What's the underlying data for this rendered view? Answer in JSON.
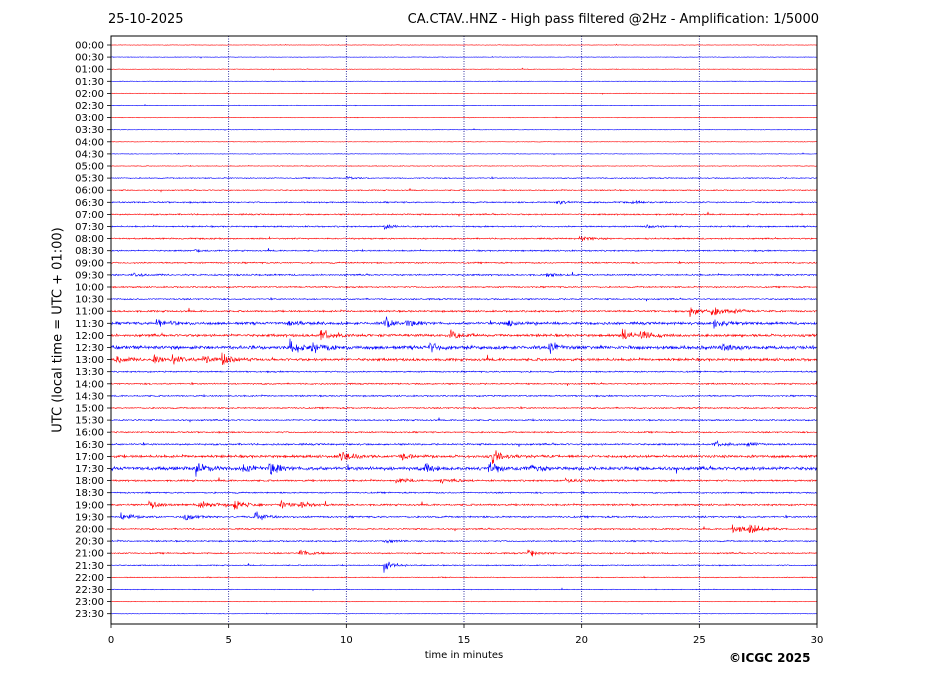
{
  "header": {
    "date": "25-10-2025",
    "title": "CA.CTAV..HNZ - High pass filtered @2Hz - Amplification: 1/5000"
  },
  "footer": {
    "copyright": "©ICGC 2025"
  },
  "chart_data": {
    "type": "line",
    "xlabel": "time in minutes",
    "ylabel": "UTC (local time = UTC + 01:00)",
    "xlim": [
      0,
      30
    ],
    "xticks": [
      0,
      5,
      10,
      15,
      20,
      25,
      30
    ],
    "x_gridlines": [
      5,
      10,
      15,
      20,
      25
    ],
    "grid": "vertical-dotted",
    "colors": {
      "trace_a": "#ff0000",
      "trace_b": "#0000ff",
      "grid": "#00008b"
    },
    "rows": [
      "00:00",
      "00:30",
      "01:00",
      "01:30",
      "02:00",
      "02:30",
      "03:00",
      "03:30",
      "04:00",
      "04:30",
      "05:00",
      "05:30",
      "06:00",
      "06:30",
      "07:00",
      "07:30",
      "08:00",
      "08:30",
      "09:00",
      "09:30",
      "10:00",
      "10:30",
      "11:00",
      "11:30",
      "12:00",
      "12:30",
      "13:00",
      "13:30",
      "14:00",
      "14:30",
      "15:00",
      "15:30",
      "16:00",
      "16:30",
      "17:00",
      "17:30",
      "18:00",
      "18:30",
      "19:00",
      "19:30",
      "20:00",
      "20:30",
      "21:00",
      "21:30",
      "22:00",
      "22:30",
      "23:00",
      "23:30"
    ],
    "noise": [
      0.3,
      0.3,
      0.3,
      0.3,
      0.3,
      0.3,
      0.3,
      0.3,
      0.3,
      0.3,
      0.4,
      0.6,
      0.6,
      0.8,
      0.8,
      0.8,
      0.8,
      0.8,
      0.8,
      0.9,
      0.8,
      0.8,
      1.0,
      1.5,
      1.5,
      2.0,
      1.5,
      0.8,
      0.8,
      0.8,
      0.8,
      0.8,
      0.8,
      1.0,
      1.5,
      2.0,
      1.0,
      0.8,
      1.0,
      1.0,
      0.8,
      0.8,
      0.8,
      0.6,
      0.5,
      0.4,
      0.3,
      0.3
    ],
    "events": [
      {
        "row": "05:30",
        "t": 10.0,
        "amp": 2
      },
      {
        "row": "06:30",
        "t": 18.9,
        "amp": 3
      },
      {
        "row": "06:30",
        "t": 22.1,
        "amp": 3
      },
      {
        "row": "07:30",
        "t": 11.6,
        "amp": 3
      },
      {
        "row": "07:30",
        "t": 22.7,
        "amp": 2
      },
      {
        "row": "08:00",
        "t": 19.9,
        "amp": 5
      },
      {
        "row": "08:30",
        "t": 3.5,
        "amp": 2
      },
      {
        "row": "09:30",
        "t": 0.9,
        "amp": 2
      },
      {
        "row": "09:30",
        "t": 18.5,
        "amp": 2
      },
      {
        "row": "11:00",
        "t": 25.5,
        "amp": 9
      },
      {
        "row": "11:00",
        "t": 24.6,
        "amp": 6
      },
      {
        "row": "11:00",
        "t": 26.5,
        "amp": 3
      },
      {
        "row": "11:30",
        "t": 1.9,
        "amp": 7
      },
      {
        "row": "11:30",
        "t": 7.5,
        "amp": 4
      },
      {
        "row": "11:30",
        "t": 11.6,
        "amp": 10
      },
      {
        "row": "11:30",
        "t": 12.5,
        "amp": 5
      },
      {
        "row": "11:30",
        "t": 16.8,
        "amp": 6
      },
      {
        "row": "11:30",
        "t": 25.6,
        "amp": 6
      },
      {
        "row": "12:00",
        "t": 8.9,
        "amp": 8
      },
      {
        "row": "12:00",
        "t": 14.4,
        "amp": 7
      },
      {
        "row": "12:00",
        "t": 21.7,
        "amp": 8
      },
      {
        "row": "12:00",
        "t": 22.5,
        "amp": 6
      },
      {
        "row": "12:30",
        "t": 7.6,
        "amp": 9
      },
      {
        "row": "12:30",
        "t": 8.5,
        "amp": 8
      },
      {
        "row": "12:30",
        "t": 13.5,
        "amp": 6
      },
      {
        "row": "12:30",
        "t": 18.6,
        "amp": 7
      },
      {
        "row": "12:30",
        "t": 25.9,
        "amp": 6
      },
      {
        "row": "13:00",
        "t": 0.2,
        "amp": 5
      },
      {
        "row": "13:00",
        "t": 1.8,
        "amp": 5
      },
      {
        "row": "13:00",
        "t": 2.6,
        "amp": 6
      },
      {
        "row": "13:00",
        "t": 3.9,
        "amp": 6
      },
      {
        "row": "13:00",
        "t": 4.7,
        "amp": 9
      },
      {
        "row": "16:30",
        "t": 25.6,
        "amp": 4
      },
      {
        "row": "16:30",
        "t": 27.0,
        "amp": 3
      },
      {
        "row": "17:00",
        "t": 9.7,
        "amp": 7
      },
      {
        "row": "17:00",
        "t": 12.3,
        "amp": 4
      },
      {
        "row": "17:00",
        "t": 16.2,
        "amp": 8
      },
      {
        "row": "17:30",
        "t": 3.6,
        "amp": 8
      },
      {
        "row": "17:30",
        "t": 5.6,
        "amp": 5
      },
      {
        "row": "17:30",
        "t": 6.7,
        "amp": 9
      },
      {
        "row": "17:30",
        "t": 13.3,
        "amp": 6
      },
      {
        "row": "17:30",
        "t": 16.0,
        "amp": 8
      },
      {
        "row": "17:30",
        "t": 17.8,
        "amp": 5
      },
      {
        "row": "18:00",
        "t": 12.1,
        "amp": 4
      },
      {
        "row": "18:00",
        "t": 14.0,
        "amp": 4
      },
      {
        "row": "18:00",
        "t": 19.3,
        "amp": 3
      },
      {
        "row": "19:00",
        "t": 1.6,
        "amp": 7
      },
      {
        "row": "19:00",
        "t": 3.7,
        "amp": 7
      },
      {
        "row": "19:00",
        "t": 5.2,
        "amp": 8
      },
      {
        "row": "19:00",
        "t": 7.2,
        "amp": 7
      },
      {
        "row": "19:00",
        "t": 8.0,
        "amp": 5
      },
      {
        "row": "19:30",
        "t": 0.4,
        "amp": 6
      },
      {
        "row": "19:30",
        "t": 3.1,
        "amp": 5
      },
      {
        "row": "19:30",
        "t": 6.1,
        "amp": 8
      },
      {
        "row": "20:00",
        "t": 26.4,
        "amp": 8
      },
      {
        "row": "20:00",
        "t": 27.1,
        "amp": 9
      },
      {
        "row": "20:30",
        "t": 11.6,
        "amp": 3
      },
      {
        "row": "21:00",
        "t": 8.0,
        "amp": 6
      },
      {
        "row": "21:00",
        "t": 17.7,
        "amp": 5
      },
      {
        "row": "21:30",
        "t": 11.6,
        "amp": 8
      }
    ]
  }
}
